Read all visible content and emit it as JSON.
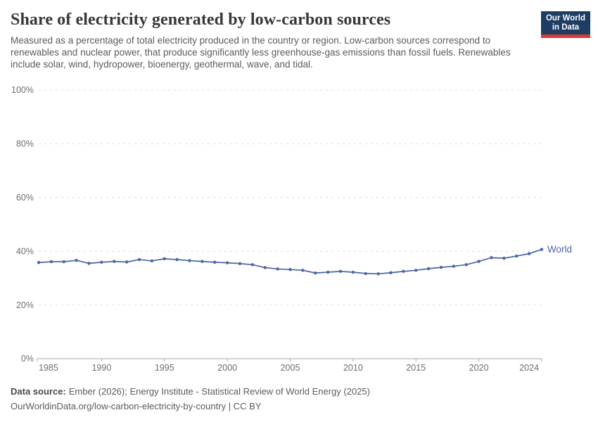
{
  "header": {
    "title": "Share of electricity generated by low-carbon sources",
    "subtitle": "Measured as a percentage of total electricity produced in the country or region. Low-carbon sources correspond to renewables and nuclear power, that produce significantly less greenhouse-gas emissions than fossil fuels. Renewables include solar, wind, hydropower, bioenergy, geothermal, wave, and tidal.",
    "logo": {
      "line1": "Our World",
      "line2": "in Data",
      "bg_color": "#1d3d63",
      "accent_color": "#d73c34"
    }
  },
  "chart_data": {
    "type": "line",
    "title": "Share of electricity generated by low-carbon sources",
    "unit": "%",
    "x": [
      1985,
      1986,
      1987,
      1988,
      1989,
      1990,
      1991,
      1992,
      1993,
      1994,
      1995,
      1996,
      1997,
      1998,
      1999,
      2000,
      2001,
      2002,
      2003,
      2004,
      2005,
      2006,
      2007,
      2008,
      2009,
      2010,
      2011,
      2012,
      2013,
      2014,
      2015,
      2016,
      2017,
      2018,
      2019,
      2020,
      2021,
      2022,
      2023,
      2024,
      2025
    ],
    "series": [
      {
        "name": "World",
        "color": "#4a66a4",
        "values": [
          35.8,
          36.1,
          36.1,
          36.6,
          35.5,
          35.9,
          36.2,
          36.0,
          36.9,
          36.4,
          37.2,
          36.9,
          36.5,
          36.2,
          35.9,
          35.7,
          35.4,
          35.0,
          33.9,
          33.4,
          33.2,
          32.9,
          31.9,
          32.2,
          32.5,
          32.2,
          31.7,
          31.6,
          32.0,
          32.5,
          32.9,
          33.5,
          34.0,
          34.4,
          35.0,
          36.2,
          37.6,
          37.4,
          38.2,
          39.1,
          40.7
        ]
      }
    ],
    "xlim": [
      1985,
      2025
    ],
    "ylim": [
      0,
      100
    ],
    "y_ticks": [
      {
        "value": 0,
        "label": "0%"
      },
      {
        "value": 20,
        "label": "20%"
      },
      {
        "value": 40,
        "label": "40%"
      },
      {
        "value": 60,
        "label": "60%"
      },
      {
        "value": 80,
        "label": "80%"
      },
      {
        "value": 100,
        "label": "100%"
      }
    ],
    "x_ticks": [
      {
        "value": 1985,
        "label": "1985"
      },
      {
        "value": 1990,
        "label": "1990"
      },
      {
        "value": 1995,
        "label": "1995"
      },
      {
        "value": 2000,
        "label": "2000"
      },
      {
        "value": 2005,
        "label": "2005"
      },
      {
        "value": 2010,
        "label": "2010"
      },
      {
        "value": 2015,
        "label": "2015"
      },
      {
        "value": 2020,
        "label": "2020"
      },
      {
        "value": 2024,
        "label": "2024"
      }
    ],
    "grid": "horizontal-dashed",
    "legend": "end-of-line-label",
    "colors": {
      "gridline": "#dcdcdc",
      "axis": "#a6a6a6",
      "tick_label": "#6e6e6e"
    }
  },
  "footer": {
    "datasource_label": "Data source:",
    "datasource_text": "Ember (2026); Energy Institute - Statistical Review of World Energy (2025)",
    "url_line": "OurWorldinData.org/low-carbon-electricity-by-country | CC BY"
  }
}
